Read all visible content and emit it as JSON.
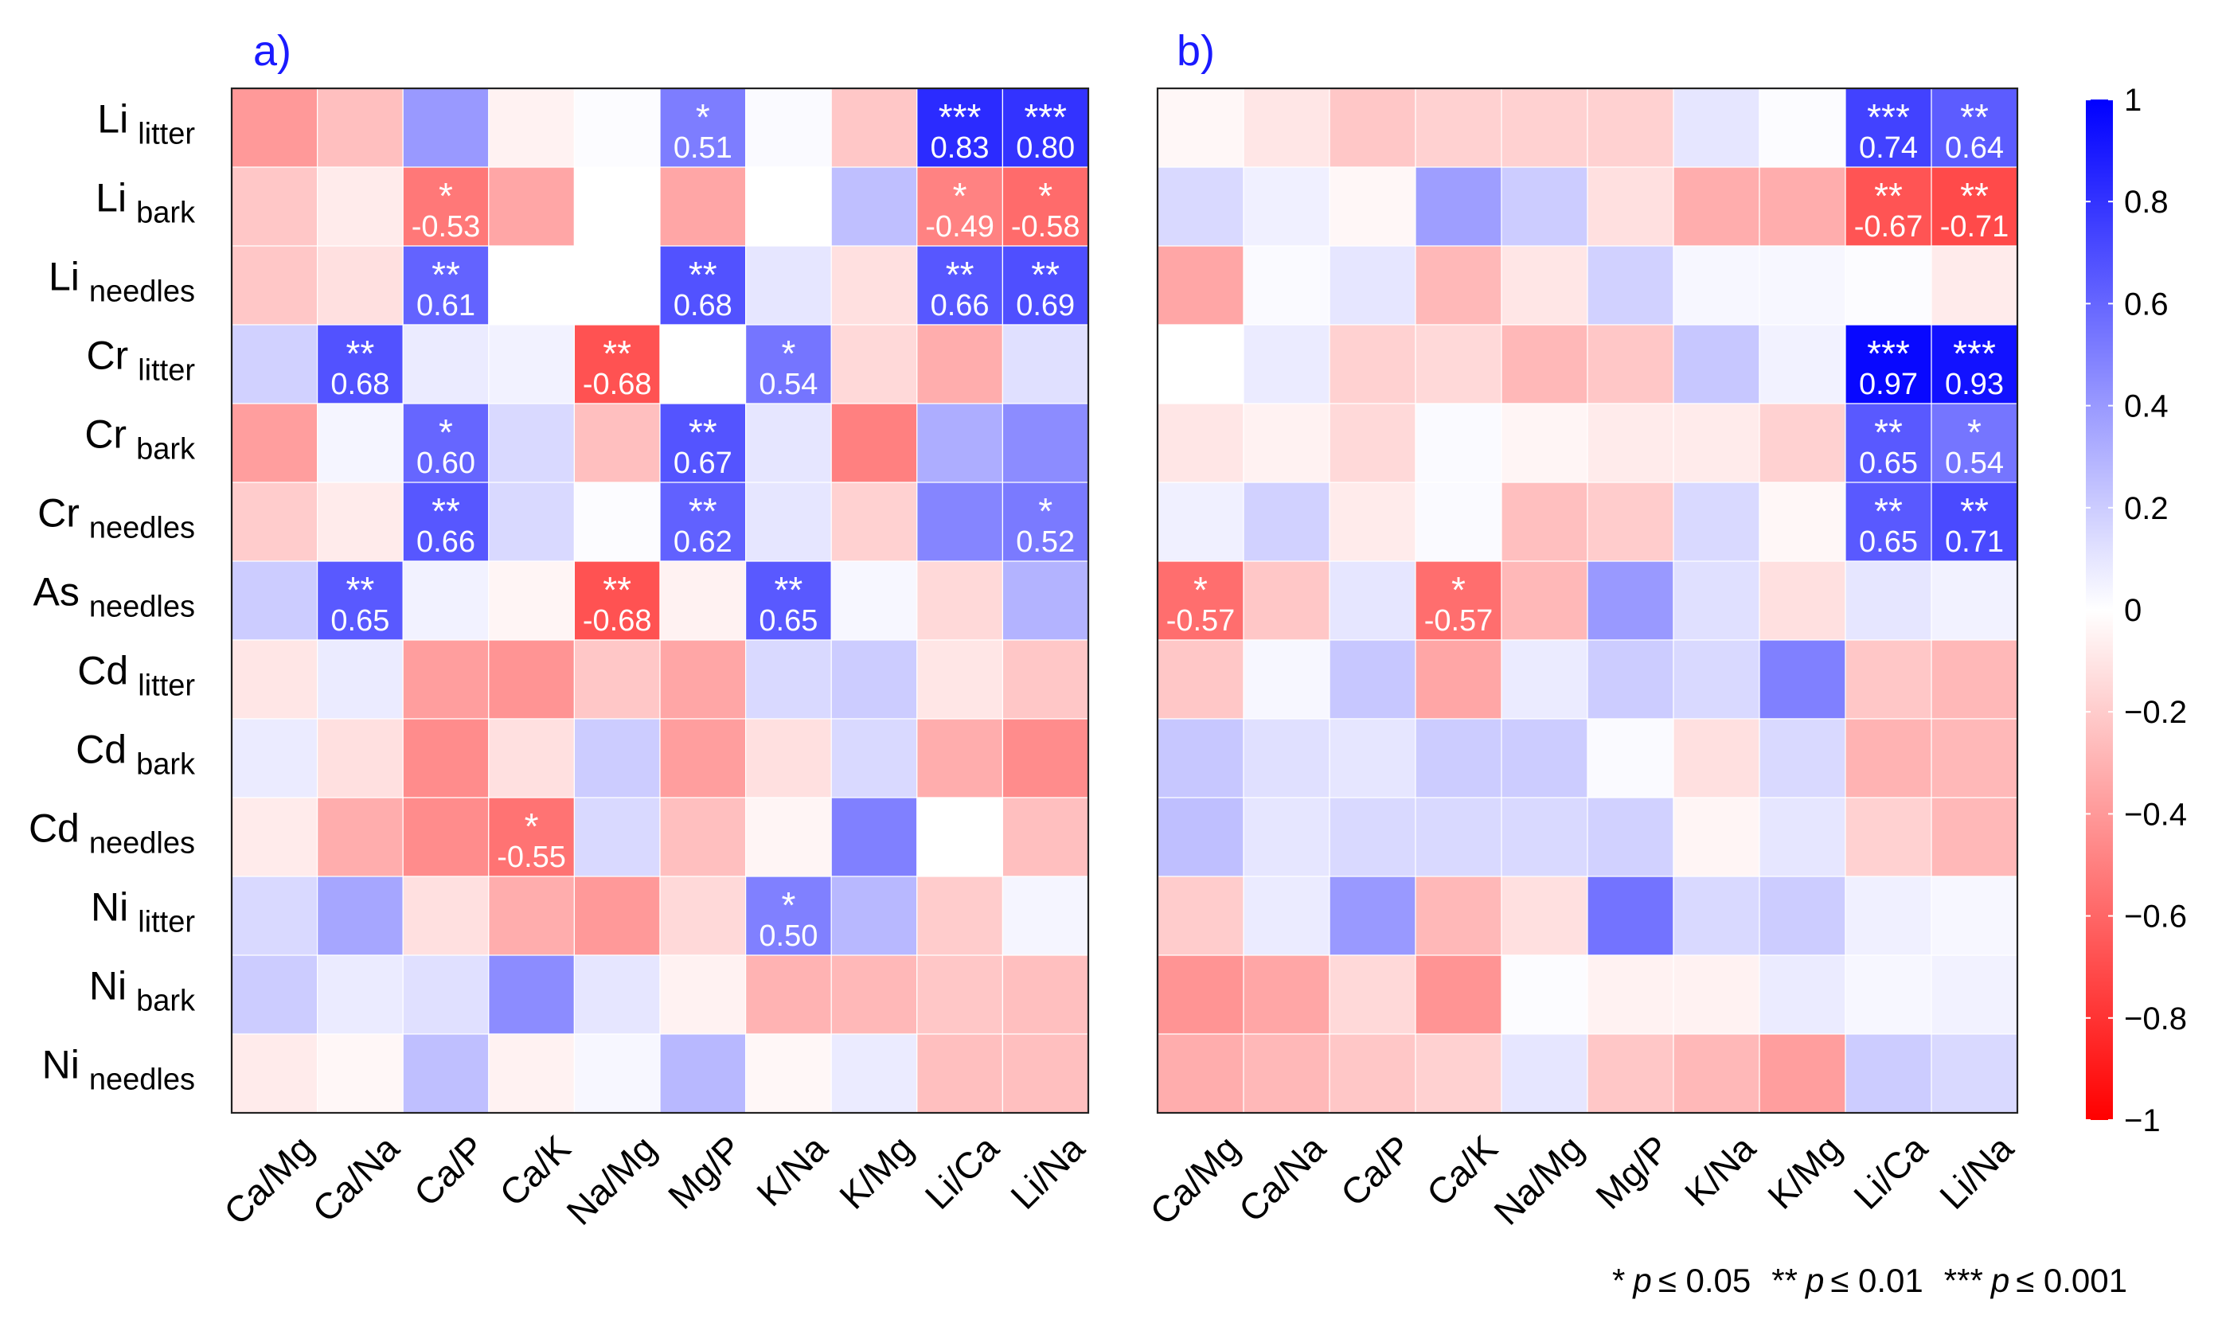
{
  "figure": {
    "footnote": {
      "s1": "*",
      "p1": "p",
      "t1": "≤ 0.05",
      "s2": "**",
      "p2": "p",
      "t2": "≤ 0.01",
      "s3": "***",
      "p3": "p",
      "t3": "≤ 0.001"
    }
  },
  "chart_data": [
    {
      "type": "heatmap",
      "title": "a)",
      "x_categories": [
        "Ca/Mg",
        "Ca/Na",
        "Ca/P",
        "Ca/K",
        "Na/Mg",
        "Mg/P",
        "K/Na",
        "K/Mg",
        "Li/Ca",
        "Li/Na"
      ],
      "y_categories": [
        {
          "main": "Li",
          "sub": "litter"
        },
        {
          "main": "Li",
          "sub": "bark"
        },
        {
          "main": "Li",
          "sub": "needles"
        },
        {
          "main": "Cr",
          "sub": "litter"
        },
        {
          "main": "Cr",
          "sub": "bark"
        },
        {
          "main": "Cr",
          "sub": "needles"
        },
        {
          "main": "As",
          "sub": "needles"
        },
        {
          "main": "Cd",
          "sub": "litter"
        },
        {
          "main": "Cd",
          "sub": "bark"
        },
        {
          "main": "Cd",
          "sub": "needles"
        },
        {
          "main": "Ni",
          "sub": "litter"
        },
        {
          "main": "Ni",
          "sub": "bark"
        },
        {
          "main": "Ni",
          "sub": "needles"
        }
      ],
      "values": [
        [
          -0.4,
          -0.25,
          0.4,
          -0.05,
          0.01,
          0.51,
          0.02,
          -0.22,
          0.83,
          0.8
        ],
        [
          -0.22,
          -0.08,
          -0.53,
          -0.35,
          0.0,
          -0.35,
          0.0,
          0.25,
          -0.49,
          -0.58
        ],
        [
          -0.22,
          -0.12,
          0.61,
          0.0,
          0.0,
          0.68,
          0.1,
          -0.12,
          0.66,
          0.69
        ],
        [
          0.18,
          0.68,
          0.08,
          0.05,
          -0.68,
          0.0,
          0.54,
          -0.15,
          -0.32,
          0.12
        ],
        [
          -0.38,
          0.04,
          0.6,
          0.15,
          -0.25,
          0.67,
          0.1,
          -0.5,
          0.32,
          0.45
        ],
        [
          -0.2,
          -0.08,
          0.66,
          0.15,
          0.01,
          0.62,
          0.1,
          -0.18,
          0.48,
          0.52
        ],
        [
          0.2,
          0.65,
          0.05,
          -0.04,
          -0.68,
          -0.05,
          0.65,
          0.03,
          -0.15,
          0.3
        ],
        [
          -0.1,
          0.08,
          -0.38,
          -0.42,
          -0.22,
          -0.35,
          0.15,
          0.2,
          -0.1,
          -0.22
        ],
        [
          0.08,
          -0.12,
          -0.45,
          -0.12,
          0.2,
          -0.38,
          -0.12,
          0.15,
          -0.32,
          -0.45
        ],
        [
          -0.08,
          -0.32,
          -0.45,
          -0.55,
          0.15,
          -0.25,
          -0.04,
          0.5,
          0.0,
          -0.25
        ],
        [
          0.15,
          0.35,
          -0.12,
          -0.32,
          -0.4,
          -0.15,
          0.5,
          0.28,
          -0.2,
          0.04
        ],
        [
          0.2,
          0.08,
          0.12,
          0.45,
          0.1,
          -0.05,
          -0.3,
          -0.28,
          -0.22,
          -0.25
        ],
        [
          -0.08,
          -0.03,
          0.25,
          -0.05,
          0.03,
          0.28,
          -0.03,
          0.08,
          -0.25,
          -0.25
        ]
      ],
      "annotations": [
        {
          "row": 0,
          "col": 5,
          "stars": "*",
          "value": "0.51"
        },
        {
          "row": 0,
          "col": 8,
          "stars": "***",
          "value": "0.83"
        },
        {
          "row": 0,
          "col": 9,
          "stars": "***",
          "value": "0.80"
        },
        {
          "row": 1,
          "col": 2,
          "stars": "*",
          "value": "-0.53"
        },
        {
          "row": 1,
          "col": 8,
          "stars": "*",
          "value": "-0.49"
        },
        {
          "row": 1,
          "col": 9,
          "stars": "*",
          "value": "-0.58"
        },
        {
          "row": 2,
          "col": 2,
          "stars": "**",
          "value": "0.61"
        },
        {
          "row": 2,
          "col": 5,
          "stars": "**",
          "value": "0.68"
        },
        {
          "row": 2,
          "col": 8,
          "stars": "**",
          "value": "0.66"
        },
        {
          "row": 2,
          "col": 9,
          "stars": "**",
          "value": "0.69"
        },
        {
          "row": 3,
          "col": 1,
          "stars": "**",
          "value": "0.68"
        },
        {
          "row": 3,
          "col": 4,
          "stars": "**",
          "value": "-0.68"
        },
        {
          "row": 3,
          "col": 6,
          "stars": "*",
          "value": "0.54"
        },
        {
          "row": 4,
          "col": 2,
          "stars": "*",
          "value": "0.60"
        },
        {
          "row": 4,
          "col": 5,
          "stars": "**",
          "value": "0.67"
        },
        {
          "row": 5,
          "col": 2,
          "stars": "**",
          "value": "0.66"
        },
        {
          "row": 5,
          "col": 5,
          "stars": "**",
          "value": "0.62"
        },
        {
          "row": 5,
          "col": 9,
          "stars": "*",
          "value": "0.52"
        },
        {
          "row": 6,
          "col": 1,
          "stars": "**",
          "value": "0.65"
        },
        {
          "row": 6,
          "col": 4,
          "stars": "**",
          "value": "-0.68"
        },
        {
          "row": 6,
          "col": 6,
          "stars": "**",
          "value": "0.65"
        },
        {
          "row": 9,
          "col": 3,
          "stars": "*",
          "value": "-0.55"
        },
        {
          "row": 10,
          "col": 6,
          "stars": "*",
          "value": "0.50"
        }
      ]
    },
    {
      "type": "heatmap",
      "title": "b)",
      "x_categories": [
        "Ca/Mg",
        "Ca/Na",
        "Ca/P",
        "Ca/K",
        "Na/Mg",
        "Mg/P",
        "K/Na",
        "K/Mg",
        "Li/Ca",
        "Li/Na"
      ],
      "y_categories": [
        {
          "main": "Li",
          "sub": "litter"
        },
        {
          "main": "Li",
          "sub": "bark"
        },
        {
          "main": "Li",
          "sub": "needles"
        },
        {
          "main": "Cr",
          "sub": "litter"
        },
        {
          "main": "Cr",
          "sub": "bark"
        },
        {
          "main": "Cr",
          "sub": "needles"
        },
        {
          "main": "As",
          "sub": "needles"
        },
        {
          "main": "Cd",
          "sub": "litter"
        },
        {
          "main": "Cd",
          "sub": "bark"
        },
        {
          "main": "Cd",
          "sub": "needles"
        },
        {
          "main": "Ni",
          "sub": "litter"
        },
        {
          "main": "Ni",
          "sub": "bark"
        },
        {
          "main": "Ni",
          "sub": "needles"
        }
      ],
      "values": [
        [
          -0.03,
          -0.1,
          -0.22,
          -0.18,
          -0.18,
          -0.18,
          0.1,
          0.01,
          0.74,
          0.64
        ],
        [
          0.15,
          0.06,
          -0.03,
          0.38,
          0.2,
          -0.12,
          -0.32,
          -0.32,
          -0.67,
          -0.71
        ],
        [
          -0.35,
          0.02,
          0.1,
          -0.28,
          -0.1,
          0.18,
          0.03,
          0.03,
          0.01,
          -0.08
        ],
        [
          0.0,
          0.08,
          -0.18,
          -0.15,
          -0.28,
          -0.22,
          0.22,
          0.05,
          0.97,
          0.93
        ],
        [
          -0.1,
          -0.05,
          -0.15,
          0.02,
          -0.04,
          -0.08,
          -0.08,
          -0.18,
          0.65,
          0.54
        ],
        [
          0.06,
          0.18,
          -0.08,
          0.02,
          -0.25,
          -0.2,
          0.15,
          -0.03,
          0.65,
          0.71
        ],
        [
          -0.57,
          -0.22,
          0.1,
          -0.57,
          -0.28,
          0.4,
          0.12,
          -0.12,
          0.1,
          0.05
        ],
        [
          -0.22,
          0.03,
          0.22,
          -0.35,
          0.08,
          0.2,
          0.15,
          0.5,
          -0.22,
          -0.28
        ],
        [
          0.22,
          0.12,
          0.1,
          0.2,
          0.2,
          0.02,
          -0.12,
          0.15,
          -0.3,
          -0.28
        ],
        [
          0.25,
          0.1,
          0.15,
          0.15,
          0.15,
          0.18,
          -0.04,
          0.1,
          -0.18,
          -0.28
        ],
        [
          -0.2,
          0.08,
          0.4,
          -0.28,
          -0.12,
          0.55,
          0.15,
          0.2,
          0.06,
          0.03
        ],
        [
          -0.42,
          -0.35,
          -0.15,
          -0.42,
          0.01,
          -0.05,
          -0.05,
          0.08,
          0.03,
          0.05
        ],
        [
          -0.32,
          -0.28,
          -0.22,
          -0.18,
          0.1,
          -0.22,
          -0.28,
          -0.38,
          0.2,
          0.15
        ]
      ],
      "annotations": [
        {
          "row": 0,
          "col": 8,
          "stars": "***",
          "value": "0.74"
        },
        {
          "row": 0,
          "col": 9,
          "stars": "**",
          "value": "0.64"
        },
        {
          "row": 1,
          "col": 8,
          "stars": "**",
          "value": "-0.67"
        },
        {
          "row": 1,
          "col": 9,
          "stars": "**",
          "value": "-0.71"
        },
        {
          "row": 3,
          "col": 8,
          "stars": "***",
          "value": "0.97"
        },
        {
          "row": 3,
          "col": 9,
          "stars": "***",
          "value": "0.93"
        },
        {
          "row": 4,
          "col": 8,
          "stars": "**",
          "value": "0.65"
        },
        {
          "row": 4,
          "col": 9,
          "stars": "*",
          "value": "0.54"
        },
        {
          "row": 5,
          "col": 8,
          "stars": "**",
          "value": "0.65"
        },
        {
          "row": 5,
          "col": 9,
          "stars": "**",
          "value": "0.71"
        },
        {
          "row": 6,
          "col": 0,
          "stars": "*",
          "value": "-0.57"
        },
        {
          "row": 6,
          "col": 3,
          "stars": "*",
          "value": "-0.57"
        }
      ]
    }
  ],
  "colorbar": {
    "min": -1,
    "max": 1,
    "colors": {
      "low": "#ff0000",
      "mid": "#ffffff",
      "high": "#0000ff"
    },
    "ticks": [
      {
        "value": 1,
        "label": "1"
      },
      {
        "value": 0.8,
        "label": "0.8"
      },
      {
        "value": 0.6,
        "label": "0.6"
      },
      {
        "value": 0.4,
        "label": "0.4"
      },
      {
        "value": 0.2,
        "label": "0.2"
      },
      {
        "value": 0,
        "label": "0"
      },
      {
        "value": -0.2,
        "label": "−0.2"
      },
      {
        "value": -0.4,
        "label": "−0.4"
      },
      {
        "value": -0.6,
        "label": "−0.6"
      },
      {
        "value": -0.8,
        "label": "−0.8"
      },
      {
        "value": -1,
        "label": "−1"
      }
    ]
  }
}
